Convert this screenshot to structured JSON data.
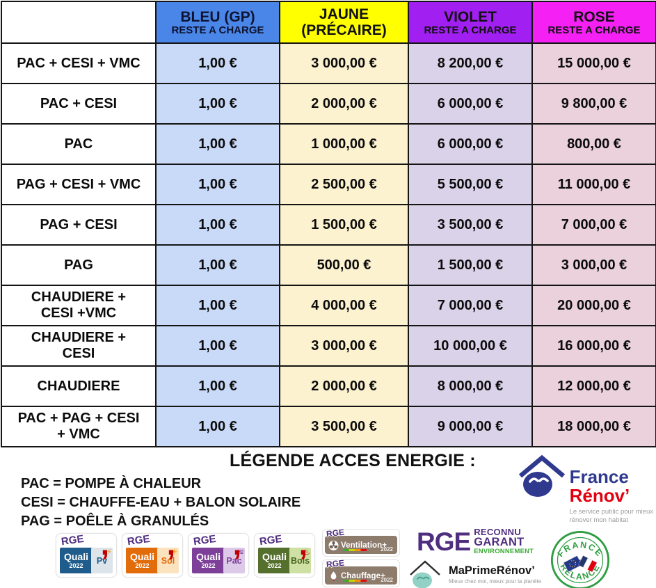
{
  "table": {
    "corner": "",
    "columns": [
      {
        "title": "BLEU (GP)",
        "subtitle": "RESTE A CHARGE"
      },
      {
        "title": "JAUNE\n(PRÉCAIRE)",
        "subtitle": ""
      },
      {
        "title": "VIOLET",
        "subtitle": "RESTE A CHARGE"
      },
      {
        "title": "ROSE",
        "subtitle": "RESTE A CHARGE"
      }
    ],
    "rows": [
      {
        "label": "PAC + CESI + VMC",
        "values": [
          "1,00 €",
          "3 000,00 €",
          "8 200,00 €",
          "15 000,00 €"
        ]
      },
      {
        "label": "PAC + CESI",
        "values": [
          "1,00 €",
          "2 000,00 €",
          "6 000,00 €",
          "9 800,00 €"
        ]
      },
      {
        "label": "PAC",
        "values": [
          "1,00 €",
          "1 000,00 €",
          "6 000,00 €",
          "800,00 €"
        ]
      },
      {
        "label": "PAG + CESI + VMC",
        "values": [
          "1,00 €",
          "2 500,00 €",
          "5 500,00 €",
          "11 000,00 €"
        ]
      },
      {
        "label": "PAG + CESI",
        "values": [
          "1,00 €",
          "1 500,00 €",
          "3 500,00 €",
          "7 000,00 €"
        ]
      },
      {
        "label": "PAG",
        "values": [
          "1,00 €",
          "500,00 €",
          "1 500,00 €",
          "3 000,00 €"
        ]
      },
      {
        "label": "CHAUDIERE +\nCESI +VMC",
        "values": [
          "1,00 €",
          "4 000,00 €",
          "7 000,00 €",
          "20 000,00 €"
        ]
      },
      {
        "label": "CHAUDIERE +\nCESI",
        "values": [
          "1,00 €",
          "3 000,00 €",
          "10 000,00 €",
          "16 000,00 €"
        ]
      },
      {
        "label": "CHAUDIERE",
        "values": [
          "1,00 €",
          "2 000,00 €",
          "8 000,00 €",
          "12 000,00 €"
        ]
      },
      {
        "label": "PAC + PAG + CESI\n+ VMC",
        "values": [
          "1,00 €",
          "3 500,00 €",
          "9 000,00 €",
          "18 000,00 €"
        ]
      }
    ]
  },
  "legend": {
    "title": "LÉGENDE ACCES ENERGIE :",
    "definitions": [
      "PAC = POMPE À CHALEUR",
      "CESI = CHAUFFE-EAU + BALON SOLAIRE",
      "PAG = POÊLE À GRANULÉS"
    ]
  },
  "logos": {
    "france_renov": {
      "name1": "France",
      "name2": "Rénov’",
      "tagline": "Le service public pour mieux\nrénover mon habitat"
    },
    "quali_badges": [
      {
        "rge": "RGE",
        "comma": ",",
        "prefix": "Quali",
        "suffix": "Pv",
        "year": "2022",
        "icon": "⚡",
        "main_color": "#1f5c8b",
        "tint_color": "#dde4ea",
        "text_color": "#1f5c8b",
        "icon_color": "#f6a01c"
      },
      {
        "rge": "RGE",
        "comma": ",",
        "prefix": "Quali",
        "suffix": "Sol",
        "year": "2022",
        "icon": "☀",
        "main_color": "#e36c0a",
        "tint_color": "#fbe3c0",
        "text_color": "#e36c0a",
        "icon_color": "#f6a01c"
      },
      {
        "rge": "RGE",
        "comma": ",",
        "prefix": "Quali",
        "suffix": "Pac",
        "year": "2022",
        "icon": "≋",
        "main_color": "#7d3f98",
        "tint_color": "#ddc9e8",
        "text_color": "#7d3f98",
        "icon_color": "#7d3f98"
      },
      {
        "rge": "RGE",
        "comma": ",",
        "prefix": "Quali",
        "suffix": "Bois",
        "year": "2022",
        "icon": "♨",
        "main_color": "#55702d",
        "tint_color": "#cfe0a4",
        "text_color": "#45661c",
        "icon_color": "#c00000"
      }
    ],
    "rge_plus_badges": [
      {
        "rge": "RGE",
        "label": "Ventilation+",
        "year": "2022",
        "icon": "fan"
      },
      {
        "rge": "RGE",
        "label": "Chauffage+",
        "year": "2022",
        "icon": "flame"
      }
    ],
    "rge_main": {
      "rge": "RGE",
      "line1": "RECONNU",
      "line2": "GARANT",
      "line3": "ENVIRONNEMENT"
    },
    "maprimerenov": {
      "name": "MaPrimeRénov’",
      "tagline": "Mieux chez moi, mieux pour la planète"
    },
    "france_relance": {
      "top": "FRANCE",
      "bottom": "RELANCE"
    }
  },
  "colors": {
    "bleu-h": "#4a86e8",
    "bleu-c": "#c9daf8",
    "jaune-h": "#ffff00",
    "jaune-c": "#fcf2d0",
    "violet-h": "#a21ff2",
    "violet-c": "#d9d2e9",
    "rose-h": "#f420f4",
    "rose-c": "#ead1dc",
    "rge-purple": "#4f2d7f",
    "rge-green": "#3aaa35",
    "fr-blue": "#2f3a8f",
    "fr-red": "#e1000f",
    "relance-green": "#2e9e41",
    "mpr-teal": "#92d1c6",
    "taupe": "#8d7b6c"
  }
}
